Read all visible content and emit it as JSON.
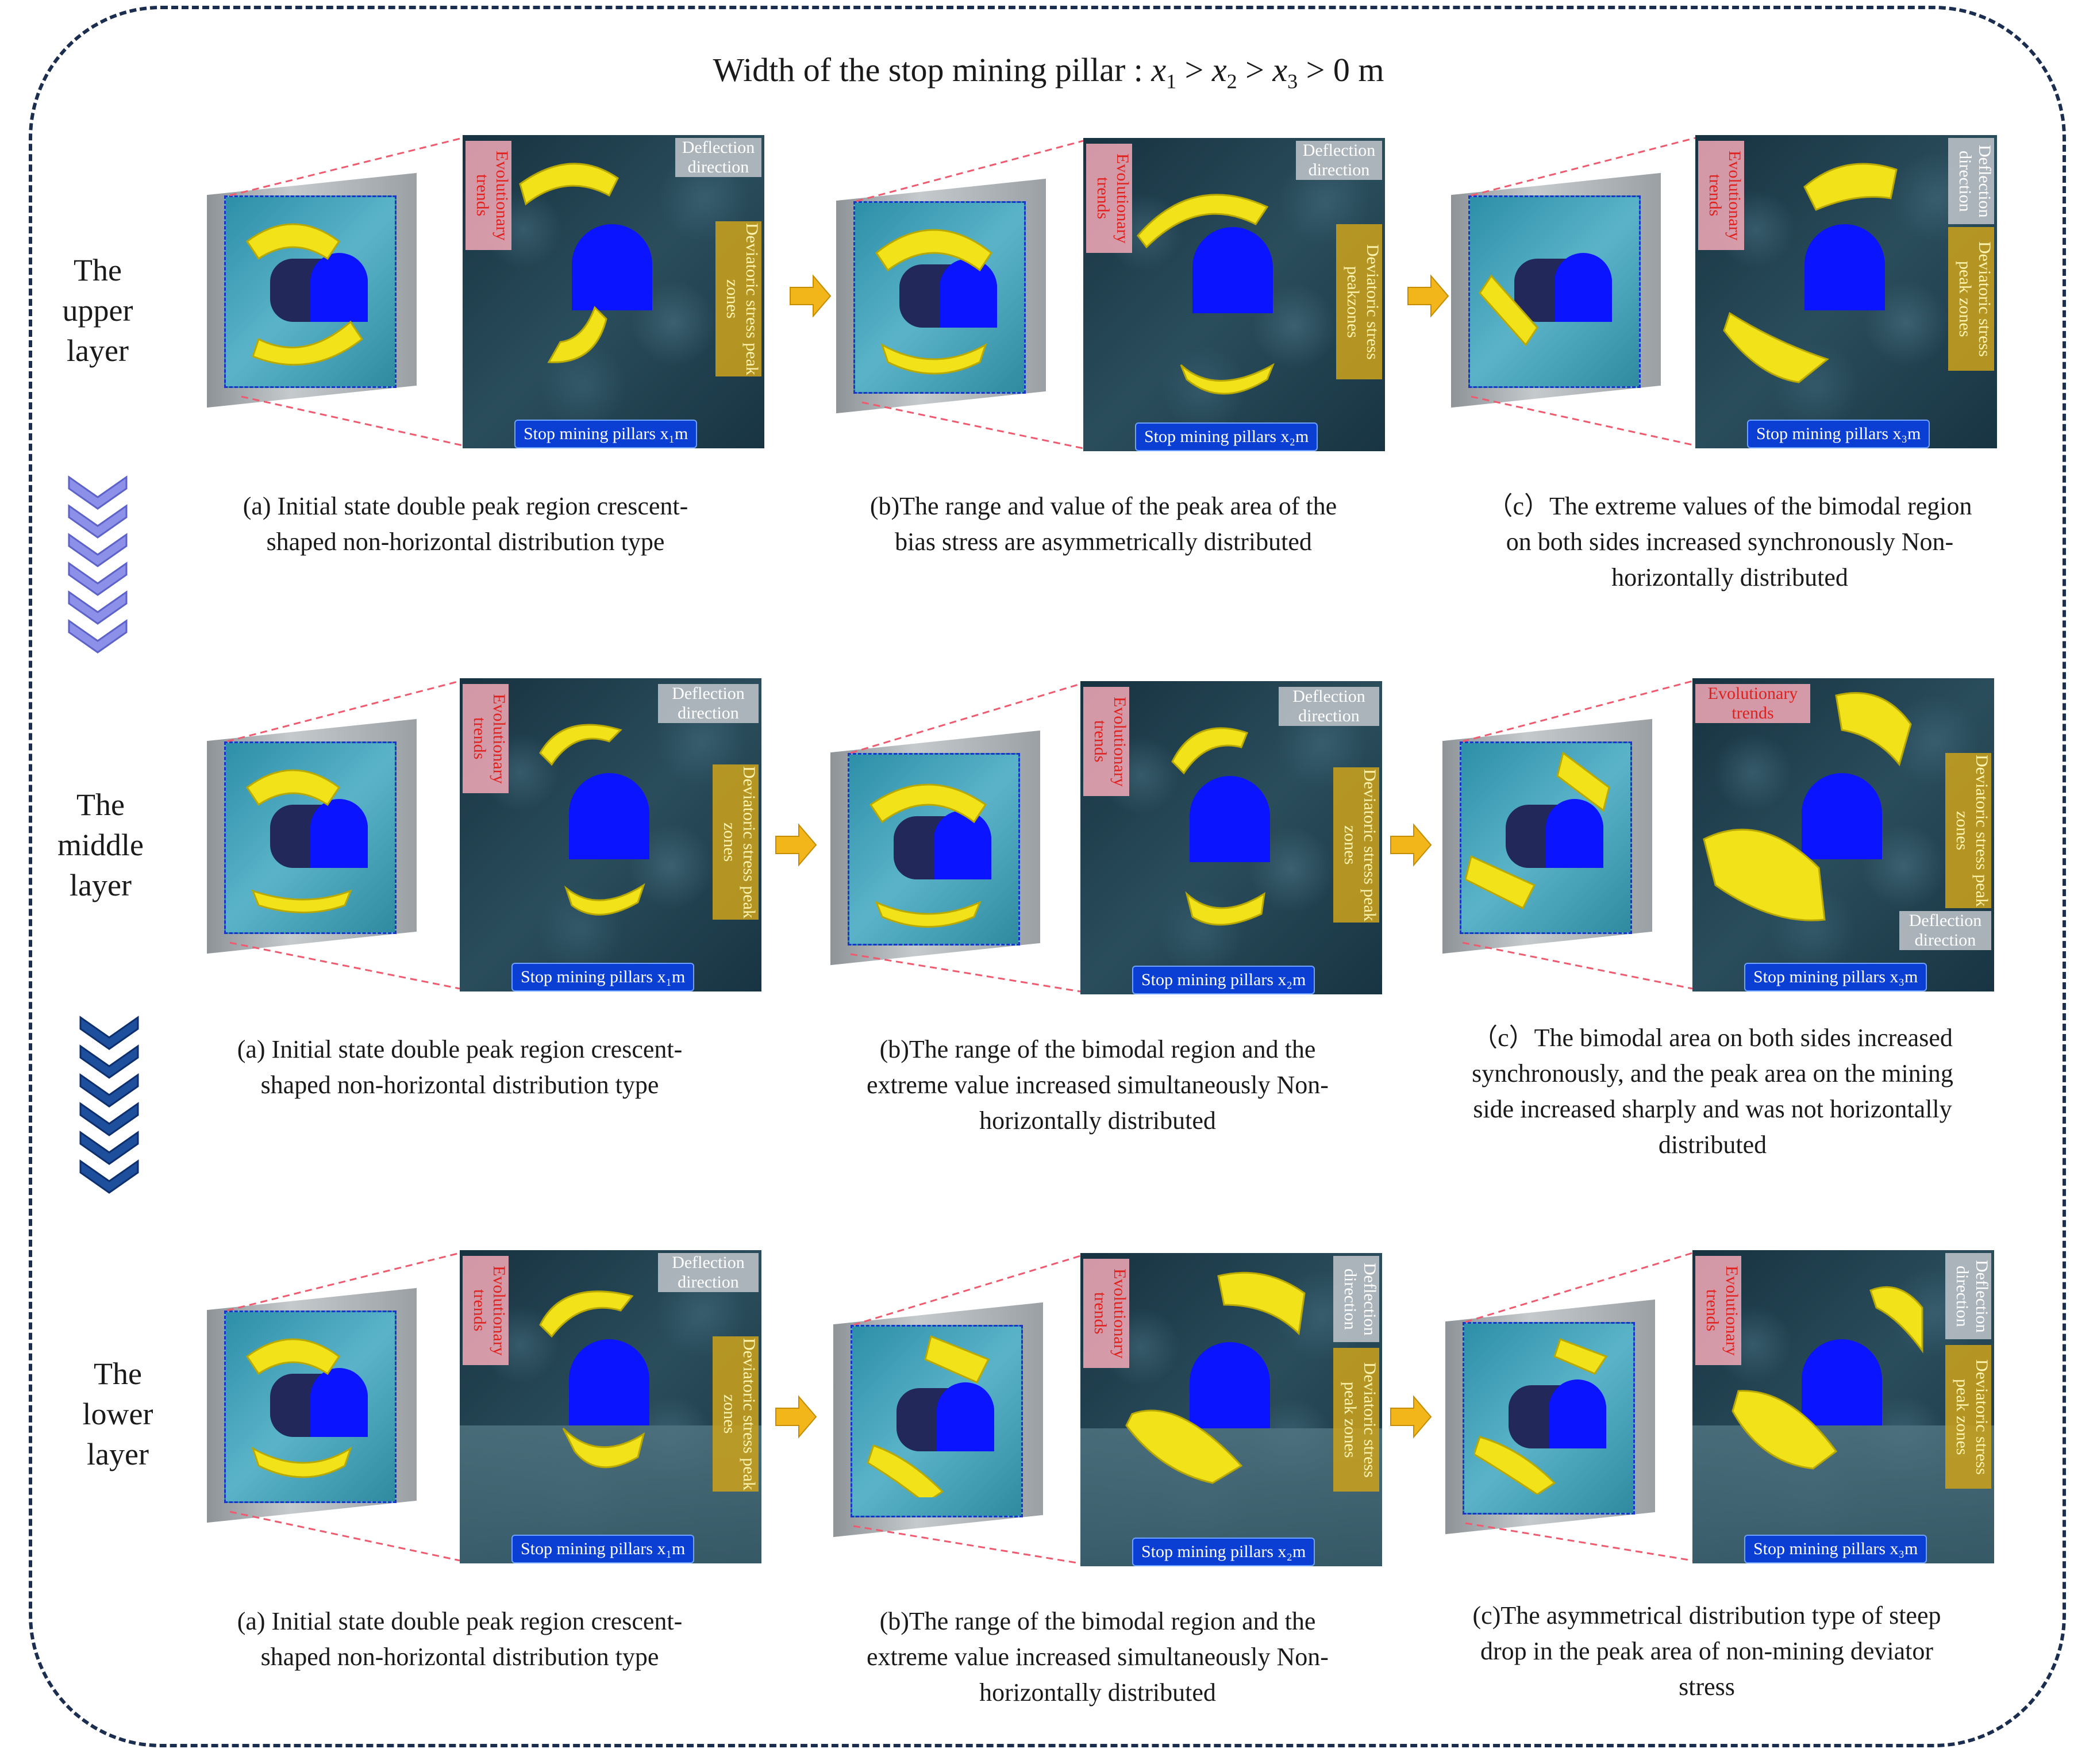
{
  "title": {
    "prefix": "Width of the stop mining pillar : ",
    "var1": "x",
    "sub1": "1",
    "var2": "x",
    "sub2": "2",
    "var3": "x",
    "sub3": "3",
    "suffix": " > 0 m"
  },
  "layers": {
    "upper": {
      "line1": "The",
      "line2": "upper",
      "line3": "layer"
    },
    "middle": {
      "line1": "The",
      "line2": "middle",
      "line3": "layer"
    },
    "lower": {
      "line1": "The",
      "line2": "lower",
      "line3": "layer"
    }
  },
  "labels": {
    "evolutionary": "Evolutionary trends",
    "deflection": "Deflection direction",
    "deviatoric": "Deviatoric stress peak zones",
    "deviatoric_alt": "Deviatoric stress peakzones",
    "pillar1": "Stop mining pillars x₁m",
    "pillar2": "Stop mining pillars x₂m",
    "pillar3": "Stop mining pillars x₃m"
  },
  "captions": {
    "upper_a": "(a) Initial state double peak region crescent-shaped non-horizontal distribution type",
    "upper_b": "(b)The range and value of the peak area of the bias stress are asymmetrically distributed",
    "upper_c": "（c）The extreme values of the bimodal region on both sides increased synchronously Non-horizontally distributed",
    "middle_a": "(a) Initial state double peak region crescent-shaped non-horizontal distribution type",
    "middle_b": "(b)The range of the bimodal region and the extreme value increased simultaneously Non-horizontally distributed",
    "middle_c": "（c）The bimodal area on both sides increased synchronously, and the peak area on the mining side increased sharply and was not horizontally distributed",
    "lower_a": "(a) Initial state double peak region crescent-shaped non-horizontal distribution type",
    "lower_b": "(b)The range of the bimodal region and the extreme value increased simultaneously Non-horizontally distributed",
    "lower_c": "(c)The asymmetrical distribution type of steep drop in the peak area of non-mining deviator stress"
  },
  "colors": {
    "peak_zone": "#f2e21a",
    "tunnel": "#0a14ff",
    "arrow": "#f2b51a",
    "frame": "#1c2e4f",
    "red_arrow": "#e0201c"
  }
}
